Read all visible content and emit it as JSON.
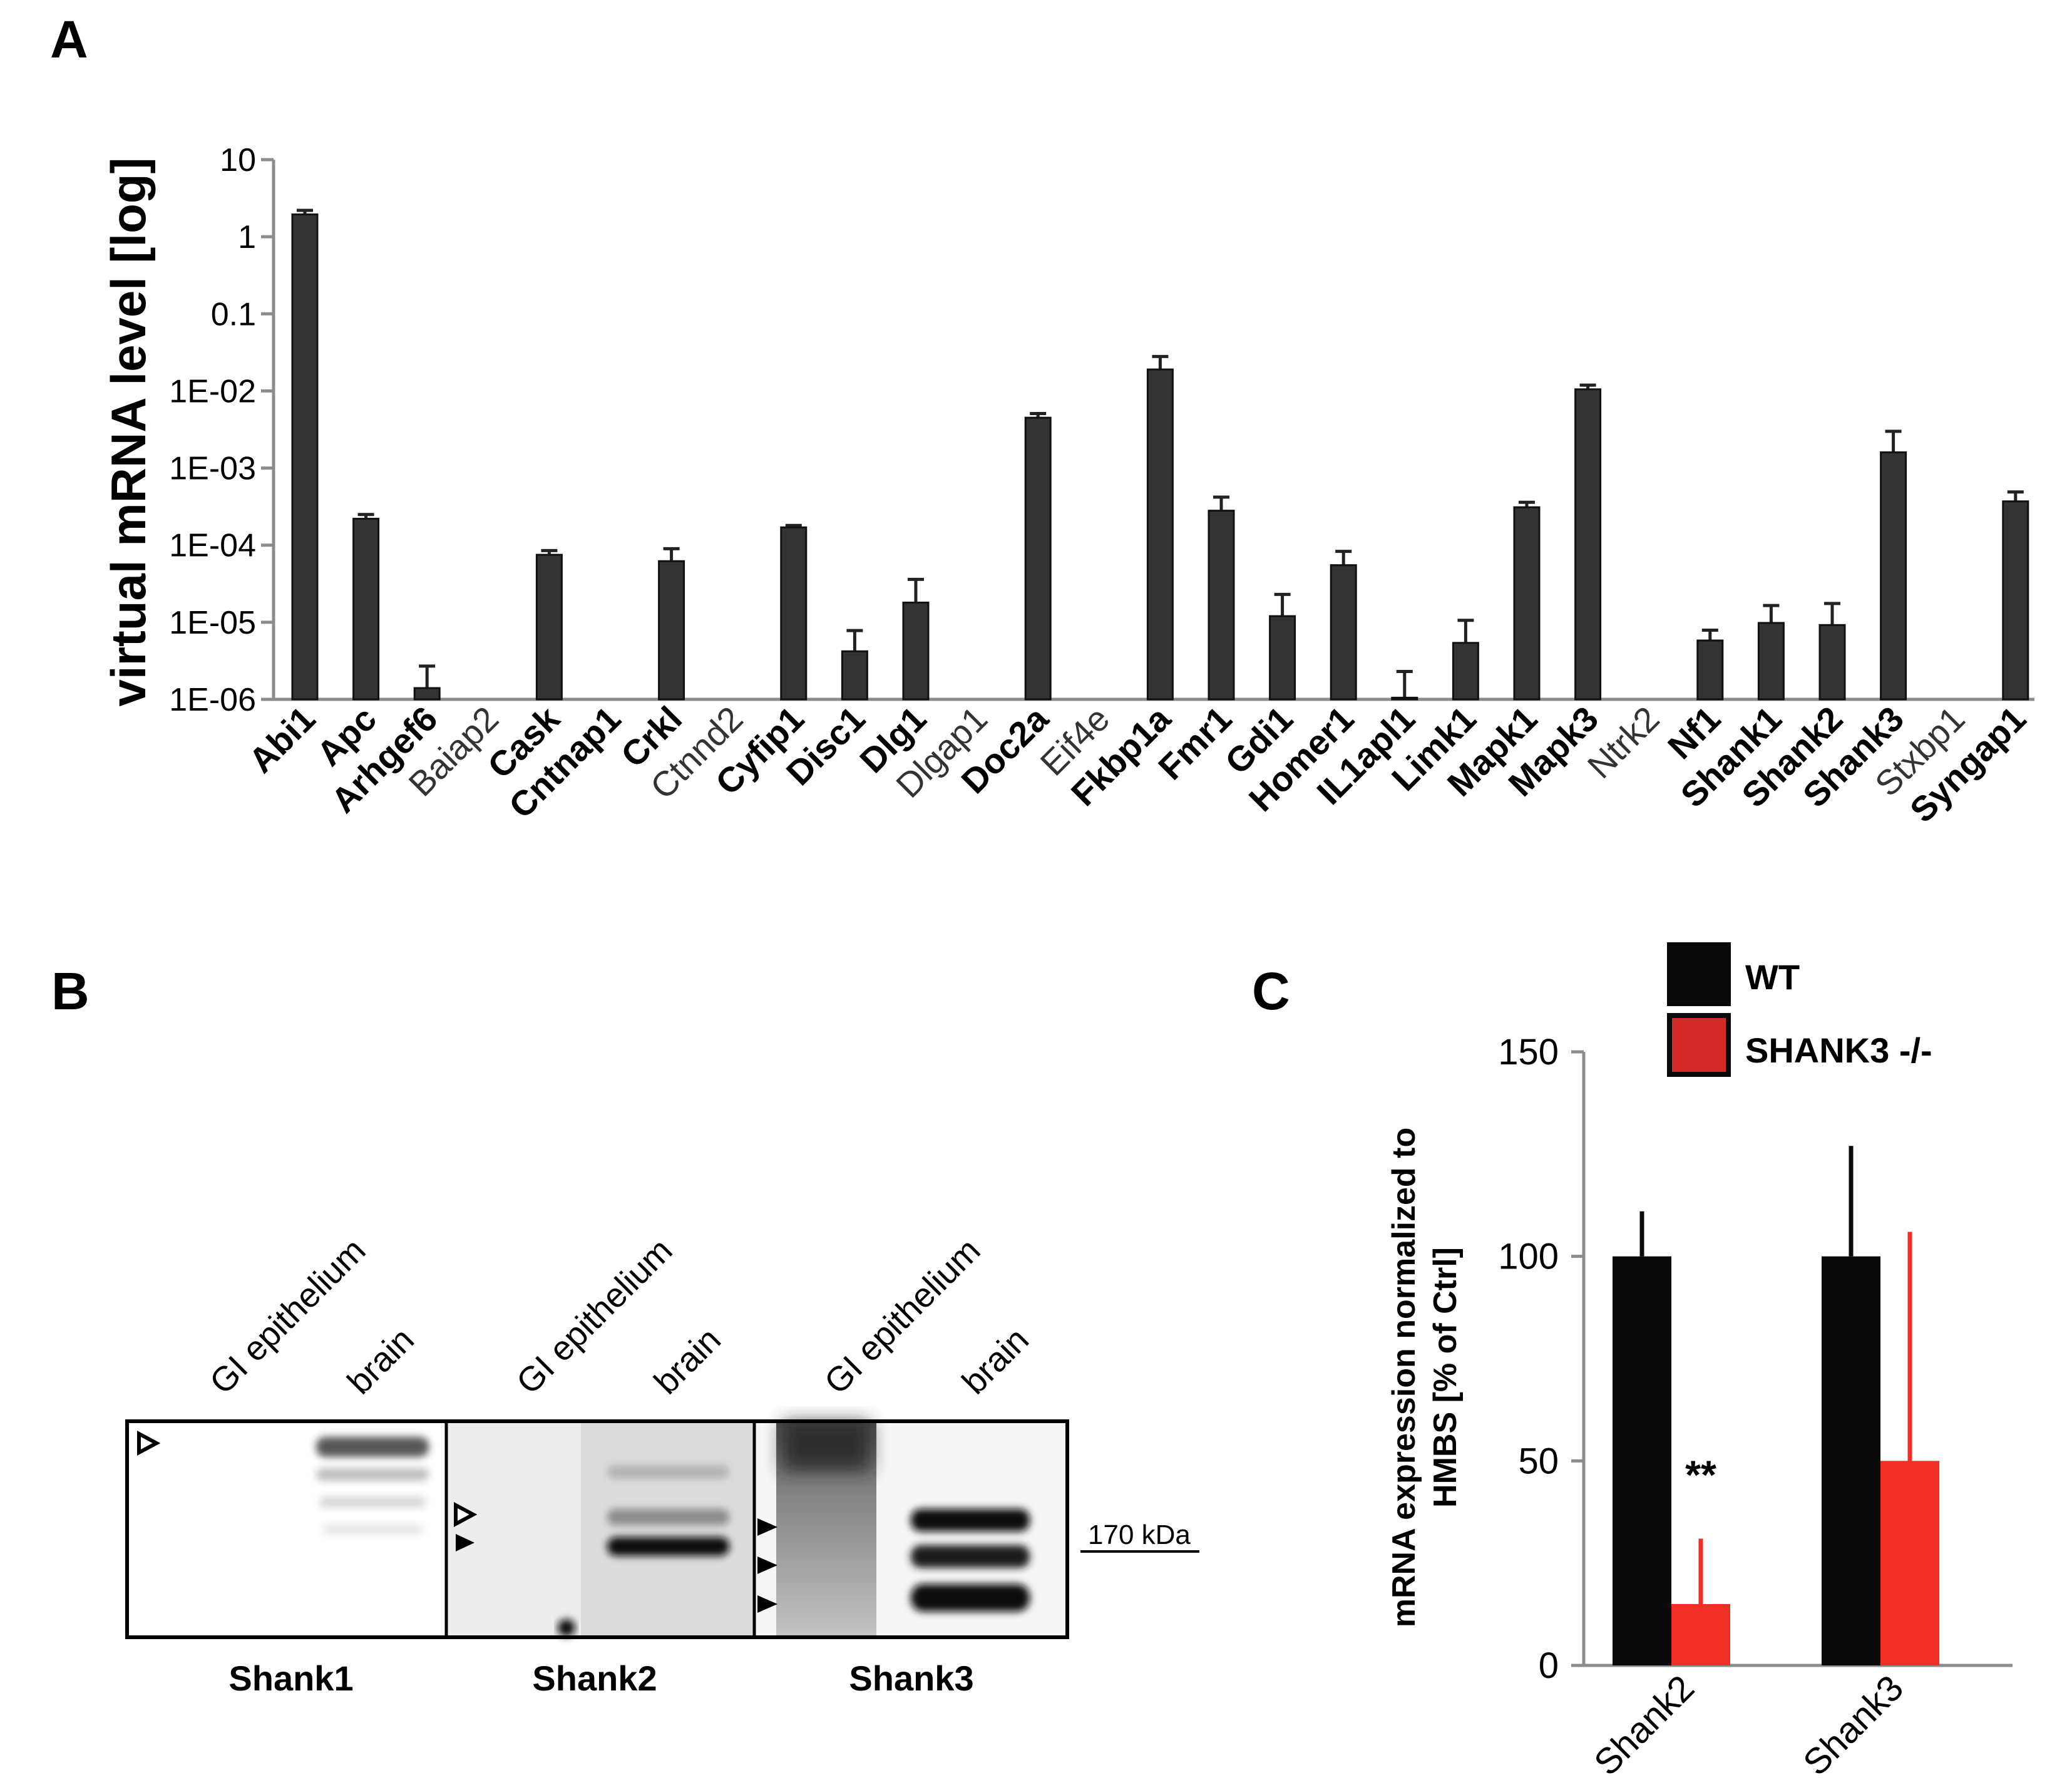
{
  "colors": {
    "bar": "#333333",
    "black": "#0a0a0a",
    "red": "#ef2f26",
    "axis": "#8c8c8c"
  },
  "panels": {
    "a": {
      "letter": "A"
    },
    "b": {
      "letter": "B"
    },
    "c": {
      "letter": "C"
    }
  },
  "chart_data": [
    {
      "id": "panel-a",
      "type": "bar",
      "scale": "log",
      "ylabel": "virtual mRNA level [log]",
      "ylim": [
        1e-06,
        10
      ],
      "yticks": [
        {
          "value": 10,
          "label": "10"
        },
        {
          "value": 1,
          "label": "1"
        },
        {
          "value": 0.1,
          "label": "0.1"
        },
        {
          "value": 0.01,
          "label": "1E-02"
        },
        {
          "value": 0.001,
          "label": "1E-03"
        },
        {
          "value": 0.0001,
          "label": "1E-04"
        },
        {
          "value": 1e-05,
          "label": "1E-05"
        },
        {
          "value": 1e-06,
          "label": "1E-06"
        }
      ],
      "categories": [
        "Abi1",
        "Apc",
        "Arhgef6",
        "Baiap2",
        "Cask",
        "Cntnap1",
        "Crkl",
        "Ctnnd2",
        "Cyfip1",
        "Disc1",
        "Dlg1",
        "Dlgap1",
        "Doc2a",
        "Eif4e",
        "Fkbp1a",
        "Fmr1",
        "Gdi1",
        "Homer1",
        "IL1apl1",
        "Limk1",
        "Mapk1",
        "Mapk3",
        "Ntrk2",
        "Nf1",
        "Shank1",
        "Shank2",
        "Shank3",
        "Stxbp1",
        "Syngap1"
      ],
      "bold": [
        true,
        true,
        true,
        false,
        true,
        true,
        true,
        false,
        true,
        true,
        true,
        false,
        true,
        false,
        true,
        true,
        true,
        true,
        true,
        true,
        true,
        true,
        false,
        true,
        true,
        true,
        true,
        false,
        true
      ],
      "values": [
        1.95,
        0.00022,
        1.4e-06,
        null,
        7.5e-05,
        null,
        6.2e-05,
        null,
        0.00017,
        4.2e-06,
        1.8e-05,
        null,
        0.0045,
        null,
        0.019,
        0.00028,
        1.2e-05,
        5.5e-05,
        1.05e-06,
        5.4e-06,
        0.00031,
        0.0105,
        null,
        5.8e-06,
        9.8e-06,
        9.2e-06,
        0.0016,
        null,
        0.00037
      ],
      "errors_upper": [
        2.2,
        0.00025,
        2.7e-06,
        null,
        8.5e-05,
        null,
        9e-05,
        null,
        0.00018,
        7.8e-06,
        3.6e-05,
        null,
        0.0051,
        null,
        0.028,
        0.00042,
        2.3e-05,
        8.3e-05,
        2.3e-06,
        1.06e-05,
        0.00036,
        0.0119,
        null,
        7.9e-06,
        1.65e-05,
        1.75e-05,
        0.003,
        null,
        0.00049
      ]
    },
    {
      "id": "panel-c",
      "type": "bar",
      "ylabel_line1": "mRNA expression normalized to",
      "ylabel_line2": "HMBS [% of Ctrl]",
      "ylim": [
        0,
        150
      ],
      "yticks": [
        {
          "value": 0,
          "label": "0"
        },
        {
          "value": 50,
          "label": "50"
        },
        {
          "value": 100,
          "label": "100"
        },
        {
          "value": 150,
          "label": "150"
        }
      ],
      "categories": [
        "Shank2",
        "Shank3"
      ],
      "series": [
        {
          "name": "WT",
          "color": "#0a0a0a",
          "values": [
            100,
            100
          ],
          "errors": [
            11,
            27
          ]
        },
        {
          "name": "SHANK3 -/-",
          "color": "#ef2f26",
          "values": [
            15,
            50
          ],
          "errors": [
            16,
            56
          ]
        }
      ],
      "annotations": [
        {
          "category": "Shank2",
          "text": "**"
        }
      ],
      "legend": "top-right"
    }
  ],
  "blot": {
    "lane_labels": [
      "GI epithelium",
      "brain"
    ],
    "marker_label": "170 kDa",
    "panels": [
      {
        "name": "Shank1"
      },
      {
        "name": "Shank2"
      },
      {
        "name": "Shank3"
      }
    ]
  }
}
